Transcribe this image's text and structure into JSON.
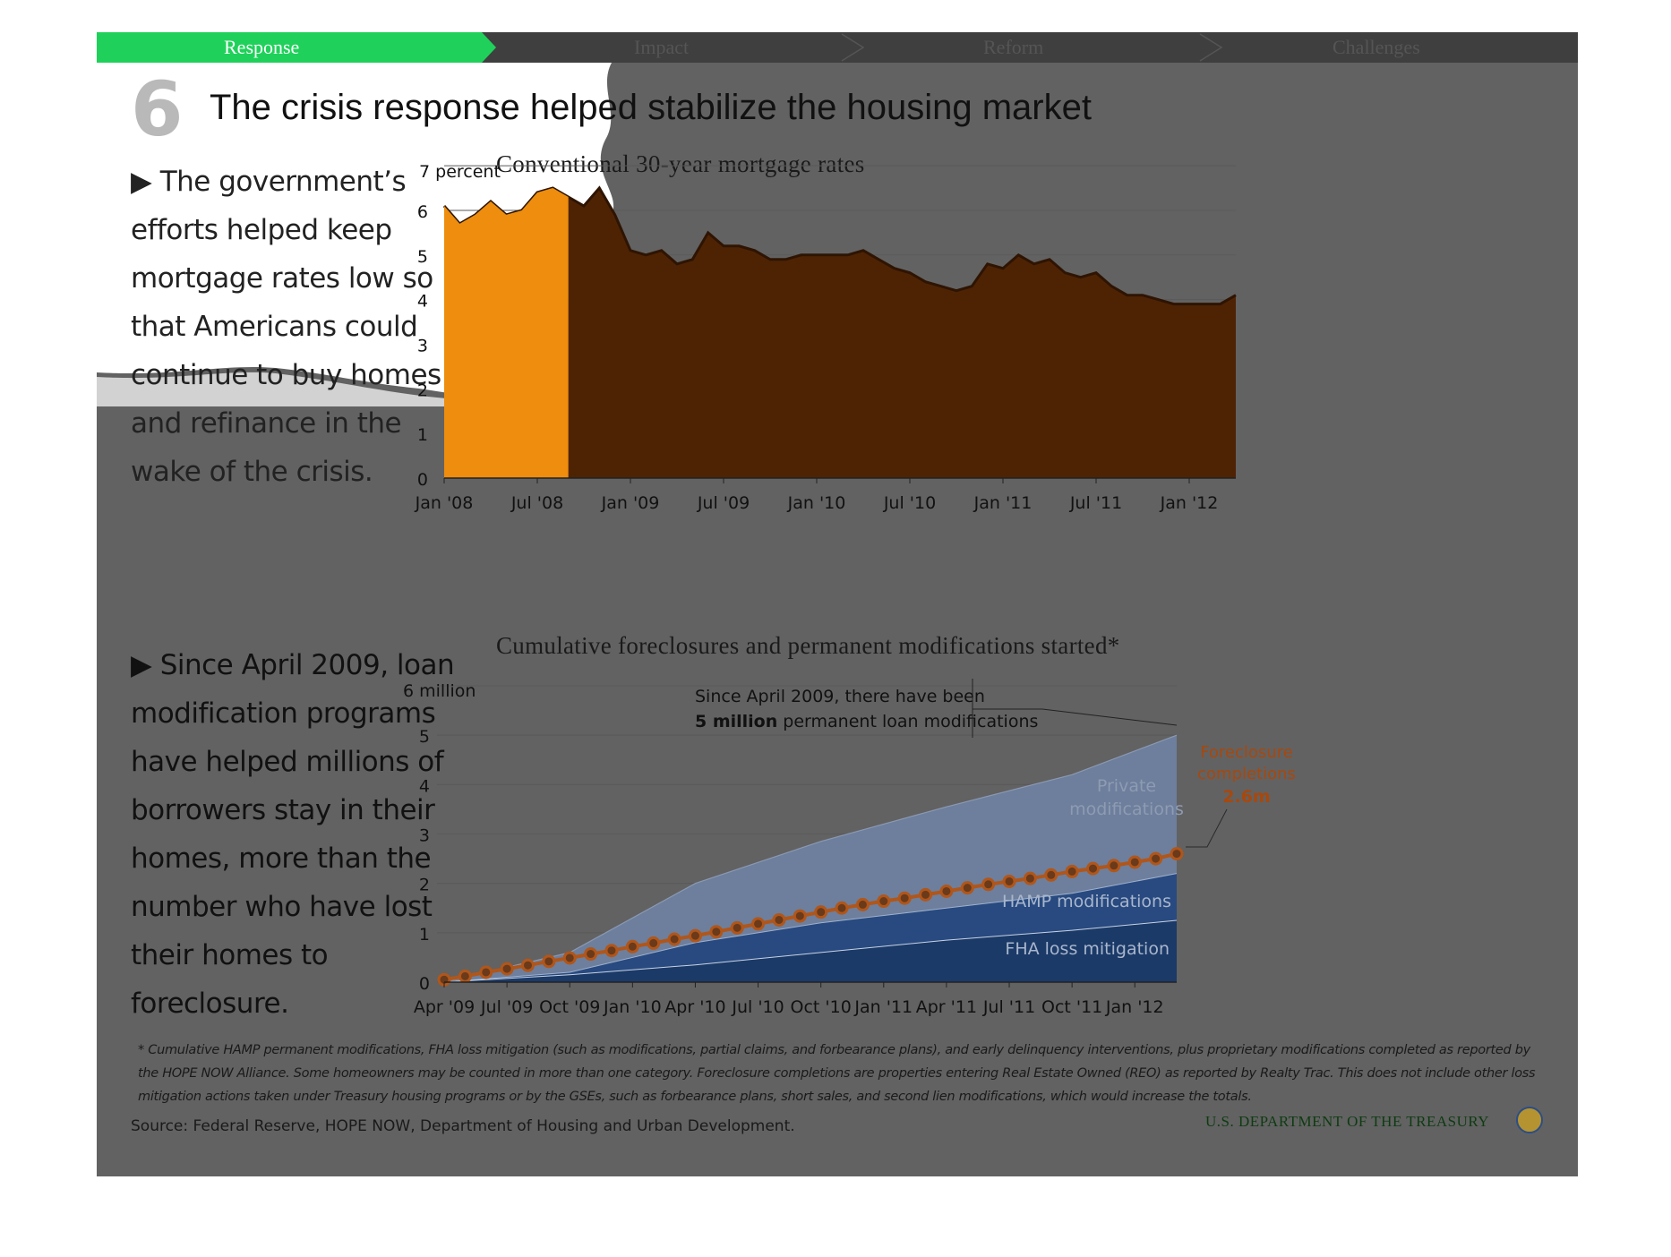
{
  "nav": {
    "items": [
      {
        "label": "Response",
        "active": true
      },
      {
        "label": "Impact",
        "active": false
      },
      {
        "label": "Reform",
        "active": false
      },
      {
        "label": "Challenges",
        "active": false
      }
    ]
  },
  "slide": {
    "number": "6",
    "title": "The crisis response helped stabilize the housing market",
    "text1": "▶ The government’s efforts helped keep mortgage rates low so that Americans could continue to buy homes and refinance in the wake of the crisis.",
    "text2": "▶ Since April 2009, loan modification programs have helped millions of borrowers stay in their homes, more than the number who have lost their homes to foreclosure."
  },
  "colors": {
    "active_tab": "#1fd15a",
    "mortgage_fill": "#4e2304",
    "mortgage_fill_highlight": "#f7940f",
    "fha": "#1b3a68",
    "hamp": "#284a80",
    "private": "#6d7f9c",
    "foreclosure": "#b1561a",
    "annotation_orange": "#a8480d"
  },
  "chart_data": [
    {
      "type": "area",
      "title": "Conventional 30-year mortgage rates",
      "ylabel": "7 percent",
      "ylim": [
        0,
        7
      ],
      "yticks": [
        "0",
        "1",
        "2",
        "3",
        "4",
        "5",
        "6"
      ],
      "xticks": [
        "Jan '08",
        "Jul '08",
        "Jan '09",
        "Jul '09",
        "Jan '10",
        "Jul '10",
        "Jan '11",
        "Jul '11",
        "Jan '12"
      ],
      "grid": true,
      "series": [
        {
          "x": [
            "Jan '08",
            "Feb '08",
            "Mar '08",
            "Apr '08",
            "May '08",
            "Jun '08",
            "Jul '08",
            "Aug '08",
            "Sep '08",
            "Oct '08",
            "Nov '08",
            "Dec '08",
            "Jan '09",
            "Feb '09",
            "Mar '09",
            "Apr '09",
            "May '09",
            "Jun '09",
            "Jul '09",
            "Aug '09",
            "Sep '09",
            "Oct '09",
            "Nov '09",
            "Dec '09",
            "Jan '10",
            "Feb '10",
            "Mar '10",
            "Apr '10",
            "May '10",
            "Jun '10",
            "Jul '10",
            "Aug '10",
            "Sep '10",
            "Oct '10",
            "Nov '10",
            "Dec '10",
            "Jan '11",
            "Feb '11",
            "Mar '11",
            "Apr '11",
            "May '11",
            "Jun '11",
            "Jul '11",
            "Aug '11",
            "Sep '11",
            "Oct '11",
            "Nov '11",
            "Dec '11",
            "Jan '12",
            "Feb '12",
            "Mar '12",
            "Apr '12"
          ],
          "values": [
            6.1,
            5.7,
            5.9,
            6.2,
            5.9,
            6.0,
            6.4,
            6.5,
            6.3,
            6.1,
            6.5,
            5.9,
            5.1,
            5.0,
            5.1,
            4.8,
            4.9,
            5.5,
            5.2,
            5.2,
            5.1,
            4.9,
            4.9,
            5.0,
            5.0,
            5.0,
            5.0,
            5.1,
            4.9,
            4.7,
            4.6,
            4.4,
            4.3,
            4.2,
            4.3,
            4.8,
            4.7,
            5.0,
            4.8,
            4.9,
            4.6,
            4.5,
            4.6,
            4.3,
            4.1,
            4.1,
            4.0,
            3.9,
            3.9,
            3.9,
            3.9,
            4.1
          ]
        }
      ]
    },
    {
      "type": "area",
      "title": "Cumulative foreclosures and permanent modifications started*",
      "ylabel": "6 million",
      "ylim": [
        0,
        6
      ],
      "yticks": [
        "0",
        "1",
        "2",
        "3",
        "4",
        "5"
      ],
      "xticks": [
        "Apr '09",
        "Jul '09",
        "Oct '09",
        "Jan '10",
        "Apr '10",
        "Jul '10",
        "Oct '10",
        "Jan '11",
        "Apr '11",
        "Jul '11",
        "Oct '11",
        "Jan '12"
      ],
      "grid": true,
      "x_range": [
        "Apr '09",
        "Mar '12"
      ],
      "series": [
        {
          "name": "FHA loss mitigation",
          "stacked": true,
          "x": [
            "Apr '09",
            "Oct '09",
            "Apr '10",
            "Oct '10",
            "Apr '11",
            "Oct '11",
            "Mar '12"
          ],
          "values": [
            0.0,
            0.15,
            0.35,
            0.6,
            0.85,
            1.05,
            1.25
          ]
        },
        {
          "name": "HAMP modifications",
          "stacked": true,
          "x": [
            "Apr '09",
            "Oct '09",
            "Apr '10",
            "Oct '10",
            "Apr '11",
            "Oct '11",
            "Mar '12"
          ],
          "values": [
            0.0,
            0.05,
            0.45,
            0.6,
            0.65,
            0.75,
            0.95
          ]
        },
        {
          "name": "Private modifications",
          "stacked": true,
          "x": [
            "Apr '09",
            "Oct '09",
            "Apr '10",
            "Oct '10",
            "Apr '11",
            "Oct '11",
            "Mar '12"
          ],
          "values": [
            0.0,
            0.4,
            1.2,
            1.65,
            2.05,
            2.4,
            2.8
          ]
        },
        {
          "name": "Foreclosure completions",
          "type": "line",
          "markers": true,
          "values": [
            0.05,
            0.12,
            0.2,
            0.27,
            0.34,
            0.42,
            0.49,
            0.57,
            0.64,
            0.72,
            0.79,
            0.87,
            0.94,
            1.02,
            1.1,
            1.18,
            1.26,
            1.34,
            1.42,
            1.5,
            1.57,
            1.64,
            1.7,
            1.77,
            1.84,
            1.91,
            1.98,
            2.04,
            2.1,
            2.17,
            2.24,
            2.3,
            2.36,
            2.43,
            2.5,
            2.6
          ]
        }
      ],
      "annotations": {
        "callout_line1": "Since April 2009, there have been",
        "callout_bold": "5 million",
        "callout_rest": " permanent loan modifications",
        "fc_label1": "Foreclosure",
        "fc_label2": "completions",
        "fc_value": "2.6m",
        "private_label1": "Private",
        "private_label2": "modifications",
        "hamp_label": "HAMP modifications",
        "fha_label": "FHA loss mitigation"
      }
    }
  ],
  "footer": {
    "footnote": "* Cumulative HAMP permanent modifications, FHA loss mitigation (such as modifications, partial claims, and forbearance plans), and early delinquency interventions, plus proprietary modifications completed as reported by the HOPE NOW Alliance. Some homeowners may be counted in more than one category. Foreclosure completions are properties entering Real Estate Owned (REO) as reported by Realty Trac. This does not include other loss mitigation actions taken under Treasury housing programs  or by the GSEs, such as forbearance plans, short sales, and second lien modifications, which would increase the totals.",
    "source": "Source: Federal Reserve, HOPE NOW, Department of Housing and Urban Development.",
    "treasury": "U.S. DEPARTMENT OF THE TREASURY"
  }
}
